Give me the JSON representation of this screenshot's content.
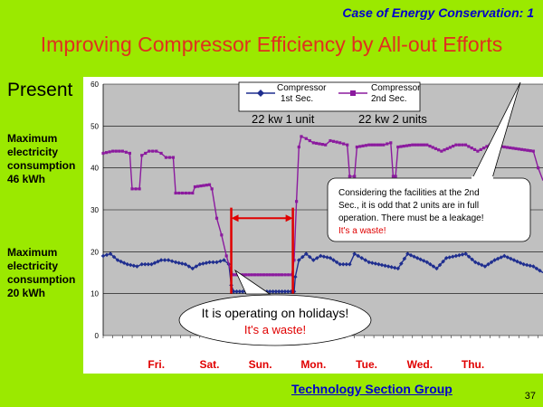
{
  "header": {
    "case_title": "Case of Energy Conservation: 1",
    "main_title": "Improving Compressor Efficiency by All-out Efforts"
  },
  "left_labels": {
    "present": "Present",
    "max_46_line1": "Maximum",
    "max_46_line2": "electricity",
    "max_46_line3": "consumption",
    "max_46_line4": "46 kWh",
    "max_20_line1": "Maximum",
    "max_20_line2": "electricity",
    "max_20_line3": "consumption",
    "max_20_line4": "20 kWh"
  },
  "chart_data": {
    "type": "line",
    "ylim": [
      0,
      60
    ],
    "yticks": [
      0,
      10,
      20,
      30,
      40,
      50,
      60
    ],
    "grid": true,
    "legend_position": "top",
    "x_range_hours": [
      0,
      182
    ],
    "days": [
      {
        "label": "Fri.",
        "at": 22
      },
      {
        "label": "Sat.",
        "at": 44
      },
      {
        "label": "Sun.",
        "at": 65
      },
      {
        "label": "Mon.",
        "at": 87
      },
      {
        "label": "Tue.",
        "at": 109
      },
      {
        "label": "Wed.",
        "at": 131
      },
      {
        "label": "Thu.",
        "at": 153
      }
    ],
    "series": [
      {
        "name": "Compressor 1st Sec.",
        "name_line1": "Compressor",
        "name_line2": "1st Sec.",
        "color": "#1f2e8f",
        "marker": "diamond",
        "points": [
          [
            0,
            19
          ],
          [
            3,
            19.5
          ],
          [
            6,
            18
          ],
          [
            10,
            17
          ],
          [
            14,
            16.5
          ],
          [
            16,
            17
          ],
          [
            20,
            17
          ],
          [
            24,
            18
          ],
          [
            27,
            18
          ],
          [
            30,
            17.5
          ],
          [
            34,
            17
          ],
          [
            37,
            16
          ],
          [
            40,
            17
          ],
          [
            44,
            17.5
          ],
          [
            47,
            17.5
          ],
          [
            50,
            18
          ],
          [
            52,
            17
          ],
          [
            53,
            12
          ],
          [
            54,
            10.5
          ],
          [
            64,
            10.5
          ],
          [
            74,
            10.5
          ],
          [
            79,
            10.5
          ],
          [
            79.5,
            14
          ],
          [
            81,
            18
          ],
          [
            84,
            19.5
          ],
          [
            87,
            18
          ],
          [
            90,
            19
          ],
          [
            94,
            18.5
          ],
          [
            98,
            17
          ],
          [
            102,
            17
          ],
          [
            104,
            19.5
          ],
          [
            107,
            18.5
          ],
          [
            110,
            17.5
          ],
          [
            114,
            17
          ],
          [
            118,
            16.5
          ],
          [
            122,
            16
          ],
          [
            126,
            19.5
          ],
          [
            130,
            18.5
          ],
          [
            134,
            17.5
          ],
          [
            138,
            16
          ],
          [
            142,
            18.5
          ],
          [
            146,
            19
          ],
          [
            150,
            19.5
          ],
          [
            154,
            17.5
          ],
          [
            158,
            16.5
          ],
          [
            162,
            18
          ],
          [
            166,
            19
          ],
          [
            170,
            18
          ],
          [
            174,
            17
          ],
          [
            178,
            16.5
          ],
          [
            182,
            15
          ]
        ]
      },
      {
        "name": "Compressor 2nd Sec.",
        "name_line1": "Compressor",
        "name_line2": "2nd Sec.",
        "color": "#8b1a9e",
        "marker": "square",
        "points": [
          [
            0,
            43.5
          ],
          [
            4,
            44
          ],
          [
            8,
            44
          ],
          [
            11,
            43.5
          ],
          [
            12,
            35
          ],
          [
            15,
            35
          ],
          [
            16,
            43
          ],
          [
            19,
            44
          ],
          [
            22,
            44
          ],
          [
            24,
            43.5
          ],
          [
            26,
            42.5
          ],
          [
            29,
            42.5
          ],
          [
            30,
            34
          ],
          [
            37,
            34
          ],
          [
            38,
            35.5
          ],
          [
            44,
            36
          ],
          [
            45,
            35
          ],
          [
            47,
            28
          ],
          [
            49,
            24
          ],
          [
            51,
            19
          ],
          [
            53,
            15
          ],
          [
            54,
            14.5
          ],
          [
            64,
            14.5
          ],
          [
            74,
            14.5
          ],
          [
            78,
            14.5
          ],
          [
            79,
            18
          ],
          [
            80,
            32
          ],
          [
            81,
            45
          ],
          [
            82,
            47.5
          ],
          [
            84,
            47
          ],
          [
            87,
            46
          ],
          [
            92,
            45.5
          ],
          [
            94,
            46.5
          ],
          [
            98,
            46
          ],
          [
            101,
            45.5
          ],
          [
            102,
            38
          ],
          [
            104,
            38
          ],
          [
            105,
            45
          ],
          [
            110,
            45.5
          ],
          [
            116,
            45.5
          ],
          [
            119,
            46
          ],
          [
            120,
            38
          ],
          [
            121,
            38
          ],
          [
            122,
            45
          ],
          [
            128,
            45.5
          ],
          [
            134,
            45.5
          ],
          [
            140,
            44
          ],
          [
            146,
            45.5
          ],
          [
            150,
            45.5
          ],
          [
            155,
            44
          ],
          [
            160,
            45.5
          ],
          [
            166,
            45
          ],
          [
            172,
            44.5
          ],
          [
            178,
            44
          ],
          [
            180,
            40
          ],
          [
            182,
            37
          ]
        ]
      }
    ]
  },
  "chart_annotations": {
    "unit_left": "22 kw 1 unit",
    "unit_right": "22 kw 2 units",
    "holiday_line1": "It is operating on holidays!",
    "holiday_line2": "It's a waste!",
    "leak_line1": "Considering the facilities at the 2nd",
    "leak_line2": "Sec., it is odd that 2 units are in full",
    "leak_line3": "operation. There must be a leakage!",
    "leak_line4": "It's a waste!"
  },
  "colors": {
    "background": "#9be900",
    "plot_area": "#c0c0c0",
    "highlight_red": "#e00000",
    "title_red": "#e0301e",
    "heading_blue": "#0000cc"
  },
  "footer": {
    "group": "Technology Section Group",
    "page_number": "37"
  }
}
